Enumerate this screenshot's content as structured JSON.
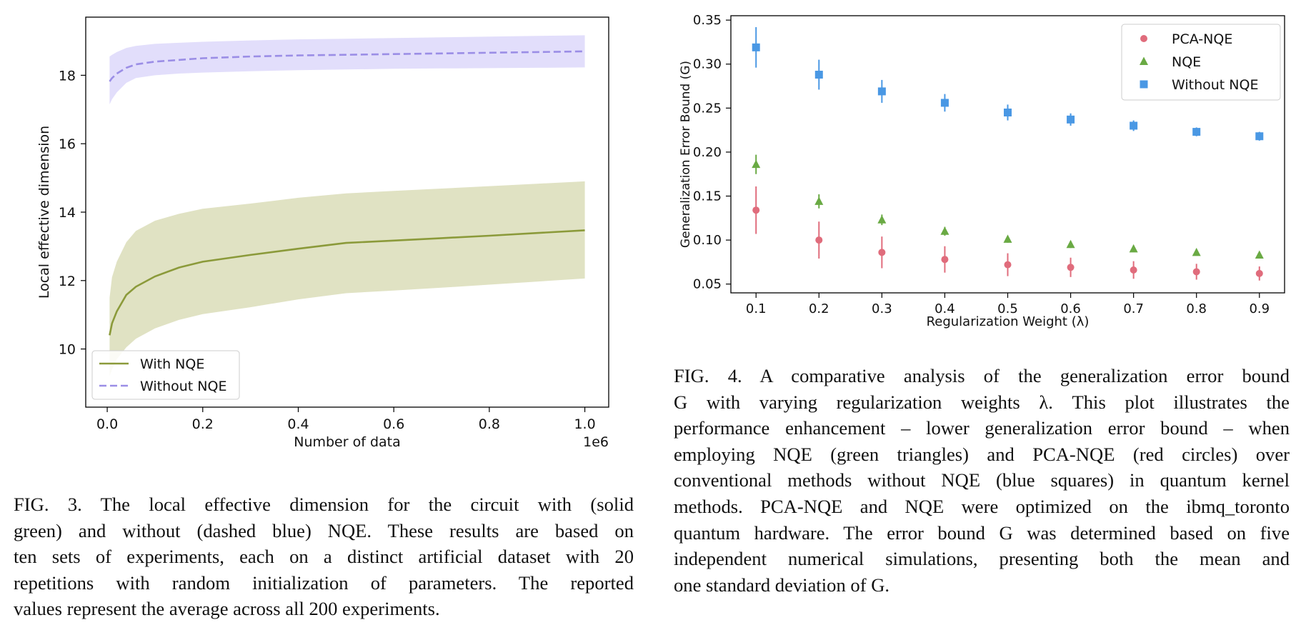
{
  "figure3": {
    "caption_lines": [
      "FIG. 3.  The local effective dimension for the circuit with (solid",
      "green) and without (dashed blue) NQE. These results are based on",
      "ten sets of experiments, each on a distinct artificial dataset with 20",
      "repetitions with random initialization of parameters.  The reported",
      "values represent the average across all 200 experiments."
    ]
  },
  "figure4": {
    "caption_lines": [
      "FIG. 4.    A comparative analysis of the generalization error bound",
      "G with varying regularization weights λ.  This plot illustrates the",
      "performance enhancement – lower generalization error bound – when",
      "employing NQE (green triangles) and PCA-NQE (red circles) over",
      "conventional methods without NQE (blue squares) in quantum kernel",
      "methods.  PCA-NQE and NQE were optimized on the ibmq_toronto",
      "quantum hardware. The error bound G was determined based on five",
      "independent numerical simulations, presenting both the mean and",
      "one standard deviation of G."
    ]
  },
  "chart_data": [
    {
      "type": "line",
      "xlabel": "Number of data",
      "ylabel": "Local effective dimension",
      "x_offset_label": "1e6",
      "xlim": [
        -0.045,
        1.05
      ],
      "ylim": [
        8.3,
        19.7
      ],
      "xticks": [
        0.0,
        0.2,
        0.4,
        0.6,
        0.8,
        1.0
      ],
      "xtick_labels": [
        "0.0",
        "0.2",
        "0.4",
        "0.6",
        "0.8",
        "1.0"
      ],
      "yticks": [
        10,
        12,
        14,
        16,
        18
      ],
      "ytick_labels": [
        "10",
        "12",
        "14",
        "16",
        "18"
      ],
      "legend_position": "lower-left",
      "grid": false,
      "series": [
        {
          "name": "With NQE",
          "style": "solid",
          "color": "#8b9a3a",
          "band_color": "#e0e2c3",
          "x": [
            0.005,
            0.01,
            0.02,
            0.04,
            0.06,
            0.1,
            0.15,
            0.2,
            0.3,
            0.4,
            0.5,
            0.6,
            0.7,
            0.8,
            0.9,
            1.0
          ],
          "mean": [
            10.4,
            10.75,
            11.1,
            11.58,
            11.82,
            12.12,
            12.38,
            12.55,
            12.75,
            12.93,
            13.1,
            13.17,
            13.24,
            13.31,
            13.39,
            13.47
          ],
          "upper": [
            11.5,
            12.1,
            12.55,
            13.12,
            13.45,
            13.75,
            13.95,
            14.1,
            14.25,
            14.42,
            14.55,
            14.62,
            14.69,
            14.76,
            14.83,
            14.9
          ],
          "lower": [
            9.2,
            9.4,
            9.7,
            10.05,
            10.3,
            10.6,
            10.85,
            11.02,
            11.22,
            11.45,
            11.63,
            11.71,
            11.79,
            11.88,
            11.97,
            12.06
          ]
        },
        {
          "name": "Without NQE",
          "style": "dashed",
          "color": "#9b8ee6",
          "band_color": "#e2defb",
          "x": [
            0.005,
            0.01,
            0.02,
            0.04,
            0.06,
            0.1,
            0.15,
            0.2,
            0.3,
            0.4,
            0.5,
            0.6,
            0.7,
            0.8,
            0.9,
            1.0
          ],
          "mean": [
            17.82,
            17.92,
            18.05,
            18.22,
            18.32,
            18.4,
            18.45,
            18.5,
            18.55,
            18.58,
            18.6,
            18.62,
            18.64,
            18.66,
            18.68,
            18.7
          ],
          "upper": [
            18.55,
            18.6,
            18.68,
            18.8,
            18.86,
            18.92,
            18.95,
            18.98,
            19.02,
            19.05,
            19.07,
            19.09,
            19.11,
            19.13,
            19.15,
            19.17
          ],
          "lower": [
            17.15,
            17.3,
            17.5,
            17.78,
            17.92,
            18.0,
            18.05,
            18.08,
            18.12,
            18.15,
            18.17,
            18.19,
            18.2,
            18.21,
            18.22,
            18.23
          ]
        }
      ]
    },
    {
      "type": "scatter",
      "xlabel": "Regularization Weight (λ)",
      "ylabel": "Generalization Error Bound (G)",
      "xlim": [
        0.06,
        0.94
      ],
      "ylim": [
        0.04,
        0.355
      ],
      "xticks": [
        0.1,
        0.2,
        0.3,
        0.4,
        0.5,
        0.6,
        0.7,
        0.8,
        0.9
      ],
      "xtick_labels": [
        "0.1",
        "0.2",
        "0.3",
        "0.4",
        "0.5",
        "0.6",
        "0.7",
        "0.8",
        "0.9"
      ],
      "yticks": [
        0.05,
        0.1,
        0.15,
        0.2,
        0.25,
        0.3,
        0.35
      ],
      "ytick_labels": [
        "0.05",
        "0.10",
        "0.15",
        "0.20",
        "0.25",
        "0.30",
        "0.35"
      ],
      "legend_position": "upper-right",
      "grid": false,
      "series": [
        {
          "name": "PCA-NQE",
          "marker": "circle",
          "color": "#e06c7c",
          "x": [
            0.1,
            0.2,
            0.3,
            0.4,
            0.5,
            0.6,
            0.7,
            0.8,
            0.9
          ],
          "y": [
            0.134,
            0.1,
            0.086,
            0.078,
            0.072,
            0.069,
            0.066,
            0.064,
            0.062
          ],
          "err": [
            0.027,
            0.021,
            0.018,
            0.015,
            0.013,
            0.011,
            0.01,
            0.009,
            0.008
          ]
        },
        {
          "name": "NQE",
          "marker": "triangle",
          "color": "#6aaa44",
          "x": [
            0.1,
            0.2,
            0.3,
            0.4,
            0.5,
            0.6,
            0.7,
            0.8,
            0.9
          ],
          "y": [
            0.186,
            0.144,
            0.123,
            0.11,
            0.101,
            0.095,
            0.09,
            0.086,
            0.083
          ],
          "err": [
            0.011,
            0.008,
            0.006,
            0.005,
            0.004,
            0.004,
            0.003,
            0.003,
            0.003
          ]
        },
        {
          "name": "Without NQE",
          "marker": "square",
          "color": "#4a98e4",
          "x": [
            0.1,
            0.2,
            0.3,
            0.4,
            0.5,
            0.6,
            0.7,
            0.8,
            0.9
          ],
          "y": [
            0.319,
            0.288,
            0.269,
            0.256,
            0.245,
            0.237,
            0.23,
            0.223,
            0.218
          ],
          "err": [
            0.023,
            0.017,
            0.013,
            0.01,
            0.009,
            0.007,
            0.006,
            0.005,
            0.005
          ]
        }
      ]
    }
  ]
}
